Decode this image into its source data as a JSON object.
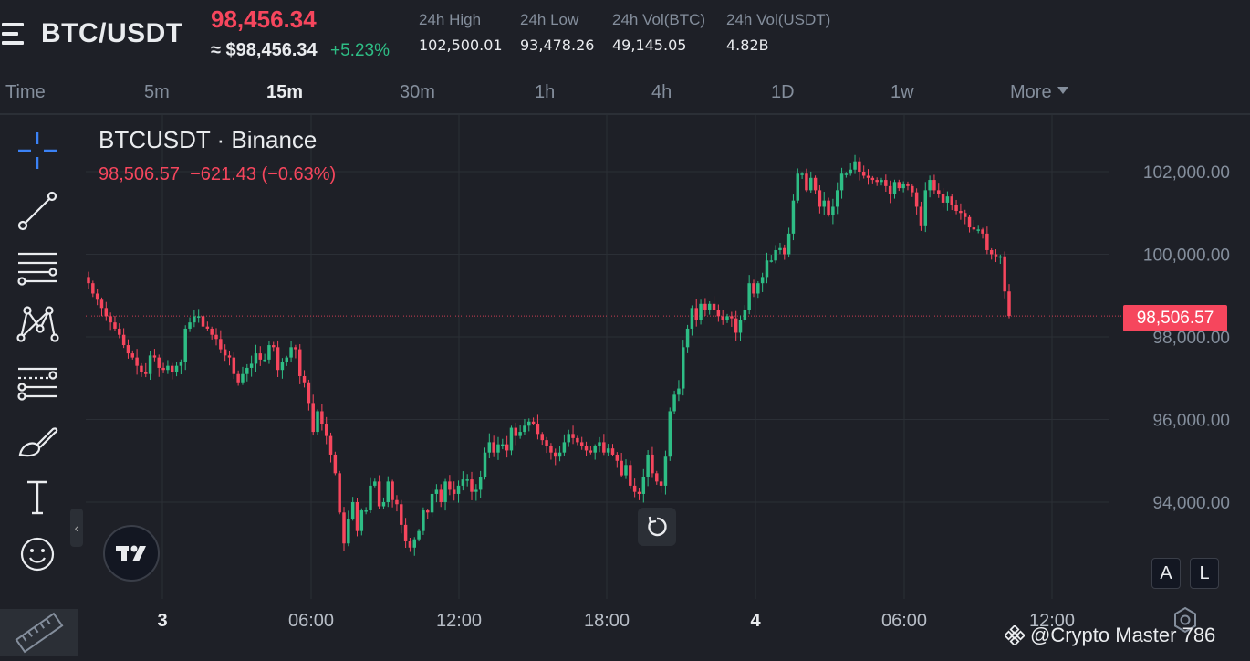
{
  "header": {
    "pair": "BTC/USDT",
    "price": "98,456.34",
    "approx": "≈ $98,456.34",
    "change": "+5.23%",
    "stats": [
      {
        "label": "24h High",
        "value": "102,500.01"
      },
      {
        "label": "24h Low",
        "value": "93,478.26"
      },
      {
        "label": "24h Vol(BTC)",
        "value": "49,145.05"
      },
      {
        "label": "24h Vol(USDT)",
        "value": "4.82B"
      }
    ]
  },
  "tabs": [
    "Time",
    "5m",
    "15m",
    "30m",
    "1h",
    "4h",
    "1D",
    "1w",
    "More"
  ],
  "active_tab": "15m",
  "chart_header": {
    "title": "BTCUSDT · Binance",
    "ohlc": "98,506.57  −621.43 (−0.63%)"
  },
  "last_price_badge": "98,506.57",
  "axis_buttons": {
    "auto": "A",
    "log": "L"
  },
  "watermark": "@Crypto Master 786",
  "toolbar_icons": [
    "crosshair-icon",
    "trendline-icon",
    "fib-lines-icon",
    "pattern-icon",
    "forecast-icon",
    "brush-icon",
    "text-icon",
    "emoji-icon",
    "ruler-icon"
  ],
  "colors": {
    "up": "#2ebd85",
    "down": "#f6465d",
    "background": "#1e2027",
    "grid": "#2b2f36"
  },
  "chart_data": {
    "type": "candlestick",
    "title": "BTCUSDT · Binance",
    "interval": "15m",
    "x_tick_labels": [
      "3",
      "06:00",
      "12:00",
      "18:00",
      "4",
      "06:00",
      "12:00"
    ],
    "y_tick_labels": [
      "102,000.00",
      "100,000.00",
      "98,000.00",
      "96,000.00",
      "94,000.00"
    ],
    "ylim": [
      92400,
      103300
    ],
    "last_price": 98506.57,
    "closes": [
      99300,
      99050,
      98900,
      98700,
      98500,
      98350,
      98200,
      98050,
      97800,
      97600,
      97500,
      97300,
      97150,
      97100,
      97550,
      97500,
      97250,
      97200,
      97300,
      97150,
      97300,
      97400,
      98200,
      98350,
      98500,
      98500,
      98250,
      98200,
      98050,
      97950,
      97700,
      97550,
      97500,
      97100,
      96900,
      97100,
      97250,
      97350,
      97600,
      97450,
      97450,
      97800,
      97750,
      97200,
      97400,
      97500,
      97750,
      97700,
      97050,
      96900,
      96400,
      95700,
      96200,
      95900,
      95600,
      95150,
      94700,
      93750,
      93000,
      93600,
      94000,
      93300,
      93800,
      93800,
      94400,
      94500,
      93900,
      94000,
      94500,
      94050,
      93950,
      93450,
      93050,
      92900,
      93100,
      93300,
      93800,
      93750,
      94200,
      94300,
      94000,
      94500,
      94300,
      94200,
      94400,
      94550,
      94550,
      94250,
      94300,
      94600,
      95200,
      95450,
      95200,
      95400,
      95400,
      95250,
      95800,
      95600,
      95700,
      95850,
      95950,
      95900,
      95650,
      95500,
      95350,
      95200,
      95100,
      95200,
      95450,
      95650,
      95550,
      95450,
      95350,
      95250,
      95200,
      95350,
      95450,
      95200,
      95300,
      95150,
      95000,
      94650,
      94900,
      94400,
      94250,
      94200,
      94600,
      95150,
      94700,
      94500,
      94400,
      95100,
      96200,
      96600,
      96750,
      97750,
      98200,
      98700,
      98400,
      98800,
      98650,
      98800,
      98650,
      98500,
      98400,
      98500,
      98450,
      98100,
      98400,
      98650,
      99300,
      99050,
      99300,
      99450,
      99850,
      99850,
      100100,
      100150,
      100000,
      100500,
      101300,
      101950,
      101950,
      101550,
      101850,
      101550,
      101150,
      101300,
      100950,
      101150,
      101550,
      101950,
      101950,
      102050,
      102250,
      102000,
      101900,
      101850,
      101800,
      101750,
      101800,
      101650,
      101450,
      101750,
      101600,
      101700,
      101650,
      101500,
      101150,
      100700,
      101550,
      101800,
      101550,
      101450,
      101250,
      101400,
      101200,
      101050,
      101000,
      100900,
      100650,
      100600,
      100600,
      100500,
      100100,
      100000,
      99950,
      99950,
      99100,
      98506.57
    ]
  }
}
